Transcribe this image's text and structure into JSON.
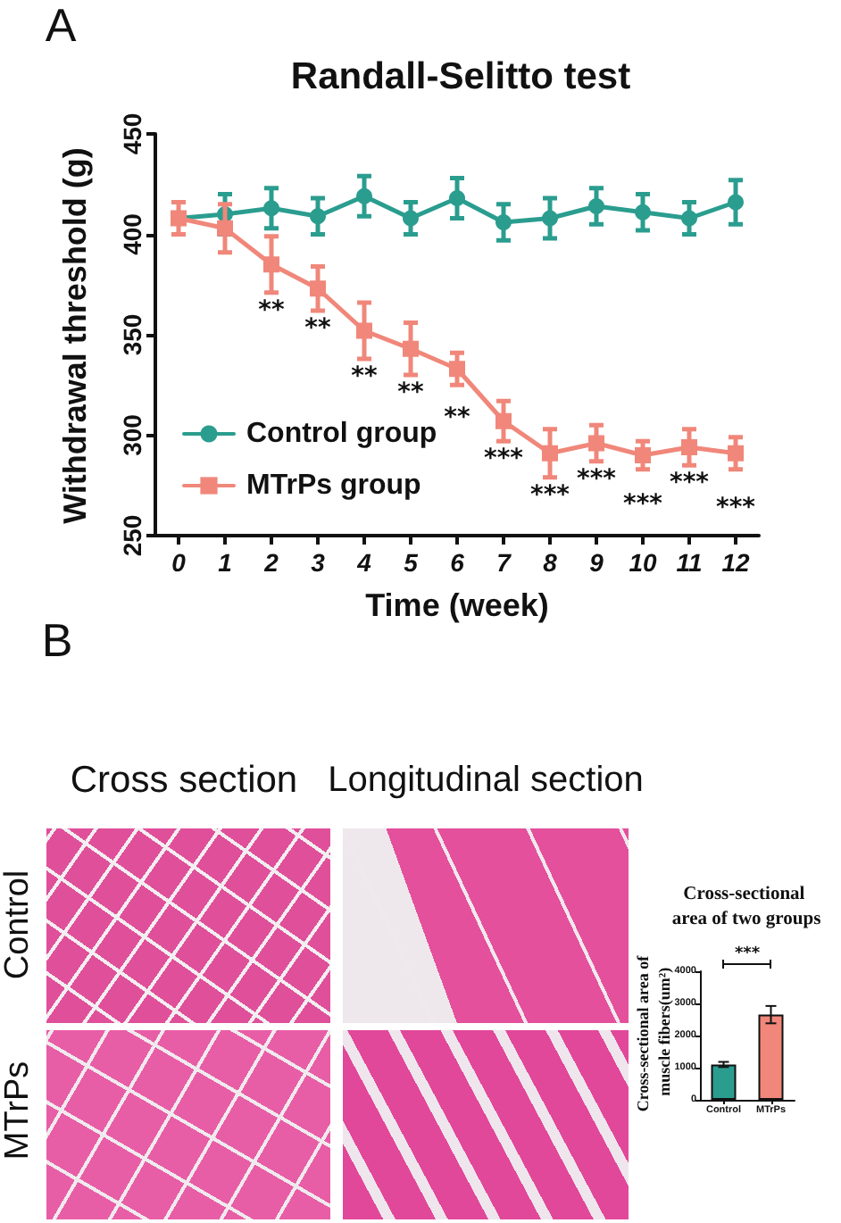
{
  "chart_data": [
    {
      "type": "line",
      "title": "Randall-Selitto test",
      "xlabel": "Time (week)",
      "ylabel": "Withdrawal threshold (g)",
      "x": [
        0,
        1,
        2,
        3,
        4,
        5,
        6,
        7,
        8,
        9,
        10,
        11,
        12
      ],
      "series": [
        {
          "name": "Control group",
          "color": "#2a9d8f",
          "marker": "circle",
          "values": [
            408,
            410,
            413,
            409,
            419,
            408,
            418,
            406,
            408,
            414,
            411,
            408,
            416
          ],
          "errors": [
            null,
            10,
            10,
            9,
            10,
            8,
            10,
            9,
            10,
            9,
            9,
            8,
            11
          ]
        },
        {
          "name": "MTrPs group",
          "color": "#f0877a",
          "marker": "square",
          "values": [
            408,
            403,
            385,
            373,
            352,
            343,
            333,
            307,
            291,
            296,
            290,
            294,
            291
          ],
          "errors": [
            8,
            12,
            14,
            11,
            14,
            13,
            8,
            10,
            12,
            9,
            7,
            9,
            8
          ]
        }
      ],
      "xlim": [
        -0.5,
        12.5
      ],
      "xticks": [
        0,
        1,
        2,
        3,
        4,
        5,
        6,
        7,
        8,
        9,
        10,
        11,
        12
      ],
      "ylim": [
        250,
        450
      ],
      "yticks": [
        250,
        300,
        350,
        400,
        450
      ],
      "legend": "bottom left",
      "line_style": "solid",
      "annotations": [
        "A",
        {
          "text": "**",
          "x": 2,
          "y": 385
        },
        {
          "text": "**",
          "x": 3,
          "y": 373
        },
        {
          "text": "**",
          "x": 4,
          "y": 352
        },
        {
          "text": "**",
          "x": 5,
          "y": 343
        },
        {
          "text": "**",
          "x": 6,
          "y": 333
        },
        {
          "text": "***",
          "x": 7,
          "y": 307
        },
        {
          "text": "***",
          "x": 8,
          "y": 291
        },
        {
          "text": "***",
          "x": 9,
          "y": 296
        },
        {
          "text": "***",
          "x": 10,
          "y": 290
        },
        {
          "text": "***",
          "x": 11,
          "y": 294
        },
        {
          "text": "***",
          "x": 12,
          "y": 291
        }
      ]
    },
    {
      "type": "other",
      "annotations": [
        "B",
        "Cross section",
        "Longitudinal section",
        "Control",
        "MTrPs"
      ]
    },
    {
      "type": "bar",
      "title": "Cross-sectional area of two groups",
      "ylabel": "Cross-sectional area of muscle fibers(um²)",
      "categories": [
        "Control",
        "MTrPs"
      ],
      "values": [
        1100,
        2650
      ],
      "errors": [
        80,
        270
      ],
      "colors": [
        "#2a9d8f",
        "#f0877a"
      ],
      "ylim": [
        0,
        4000
      ],
      "yticks": [
        0,
        1000,
        2000,
        3000,
        4000
      ],
      "annotations": [
        "***"
      ]
    }
  ]
}
